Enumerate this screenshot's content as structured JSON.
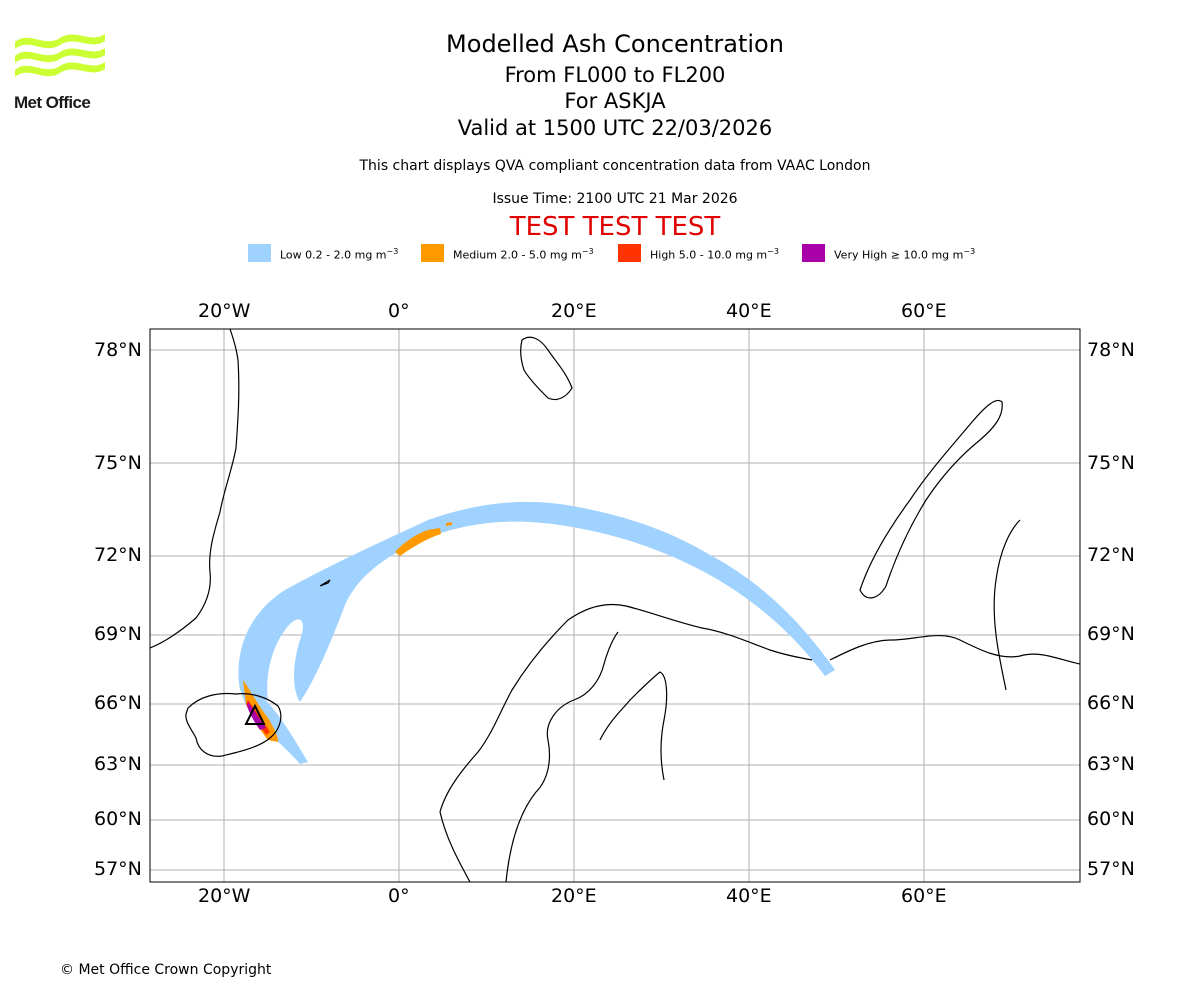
{
  "header": {
    "title": "Modelled Ash Concentration",
    "subtitle_levels": "From FL000 to FL200",
    "subtitle_volcano": "For ASKJA",
    "subtitle_valid": "Valid at 1500 UTC 22/03/2026",
    "description": "This chart displays QVA compliant concentration data from VAAC London",
    "issue_time": "Issue Time: 2100 UTC 21 Mar 2026",
    "test_banner": "TEST TEST TEST"
  },
  "logo": {
    "text": "Met Office",
    "color": "#ccff33"
  },
  "legend": [
    {
      "label": "Low 0.2 - 2.0 mg m",
      "exp": "−3",
      "color": "#a0d2ff"
    },
    {
      "label": "Medium 2.0 - 5.0 mg m",
      "exp": "−3",
      "color": "#ff9900"
    },
    {
      "label": "High 5.0 - 10.0 mg m",
      "exp": "−3",
      "color": "#ff3300"
    },
    {
      "label": "Very High  ≥  10.0 mg m",
      "exp": "−3",
      "color": "#aa00aa"
    }
  ],
  "map": {
    "longitude_ticks": [
      "20°W",
      "0°",
      "20°E",
      "40°E",
      "60°E"
    ],
    "latitude_ticks": [
      "78°N",
      "75°N",
      "72°N",
      "69°N",
      "66°N",
      "63°N",
      "60°N",
      "57°N"
    ],
    "grid": true,
    "volcano_marker": "triangle"
  },
  "footer": {
    "copyright": "© Met Office Crown Copyright"
  }
}
